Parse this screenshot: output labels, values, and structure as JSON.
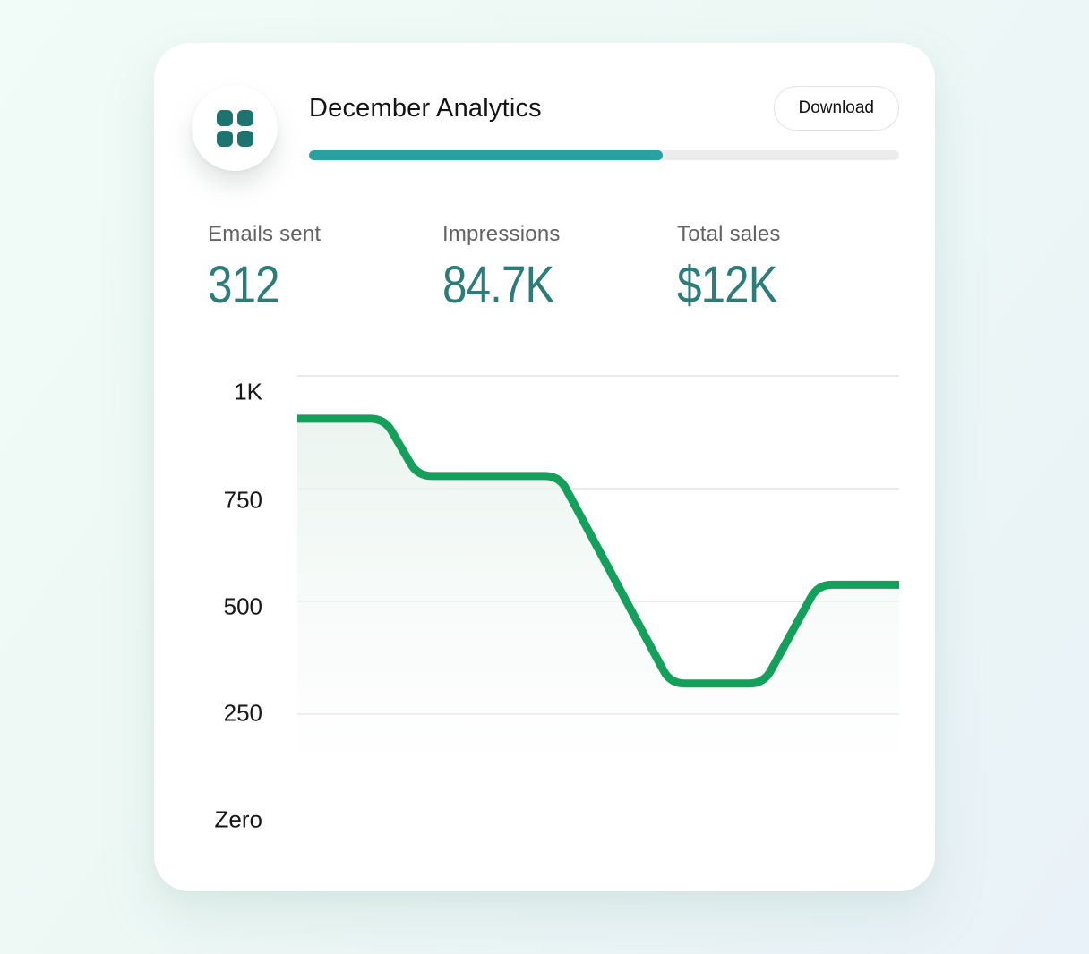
{
  "card": {
    "header": {
      "title": "December Analytics",
      "icon": "grid-2x2",
      "icon_color": "#1d736e",
      "download_label": "Download",
      "progress_percent": 60,
      "progress_color": "#2aa0a0",
      "progress_track_color": "#ececec"
    },
    "stats": [
      {
        "label": "Emails sent",
        "value": "312"
      },
      {
        "label": "Impressions",
        "value": "84.7K"
      },
      {
        "label": "Total sales",
        "value": "$12K"
      }
    ],
    "accent_teal": "#2b7d7a"
  },
  "chart_data": {
    "type": "area",
    "title": "December Analytics",
    "xlabel": "",
    "ylabel": "",
    "ylim": [
      0,
      1000
    ],
    "y_ticks": [
      "1K",
      "750",
      "500",
      "250",
      "Zero"
    ],
    "grid_values": [
      1000,
      750,
      500,
      250
    ],
    "grid": true,
    "legend": false,
    "line_color": "#13a05b",
    "fill_top_color": "#e2f0e9",
    "fill_bottom_color": "#f6faf8",
    "points": [
      {
        "x": 0.0,
        "y": 905
      },
      {
        "x": 0.145,
        "y": 905
      },
      {
        "x": 0.2,
        "y": 778
      },
      {
        "x": 0.435,
        "y": 778
      },
      {
        "x": 0.62,
        "y": 318
      },
      {
        "x": 0.775,
        "y": 318
      },
      {
        "x": 0.865,
        "y": 537
      },
      {
        "x": 1.0,
        "y": 537
      }
    ]
  }
}
